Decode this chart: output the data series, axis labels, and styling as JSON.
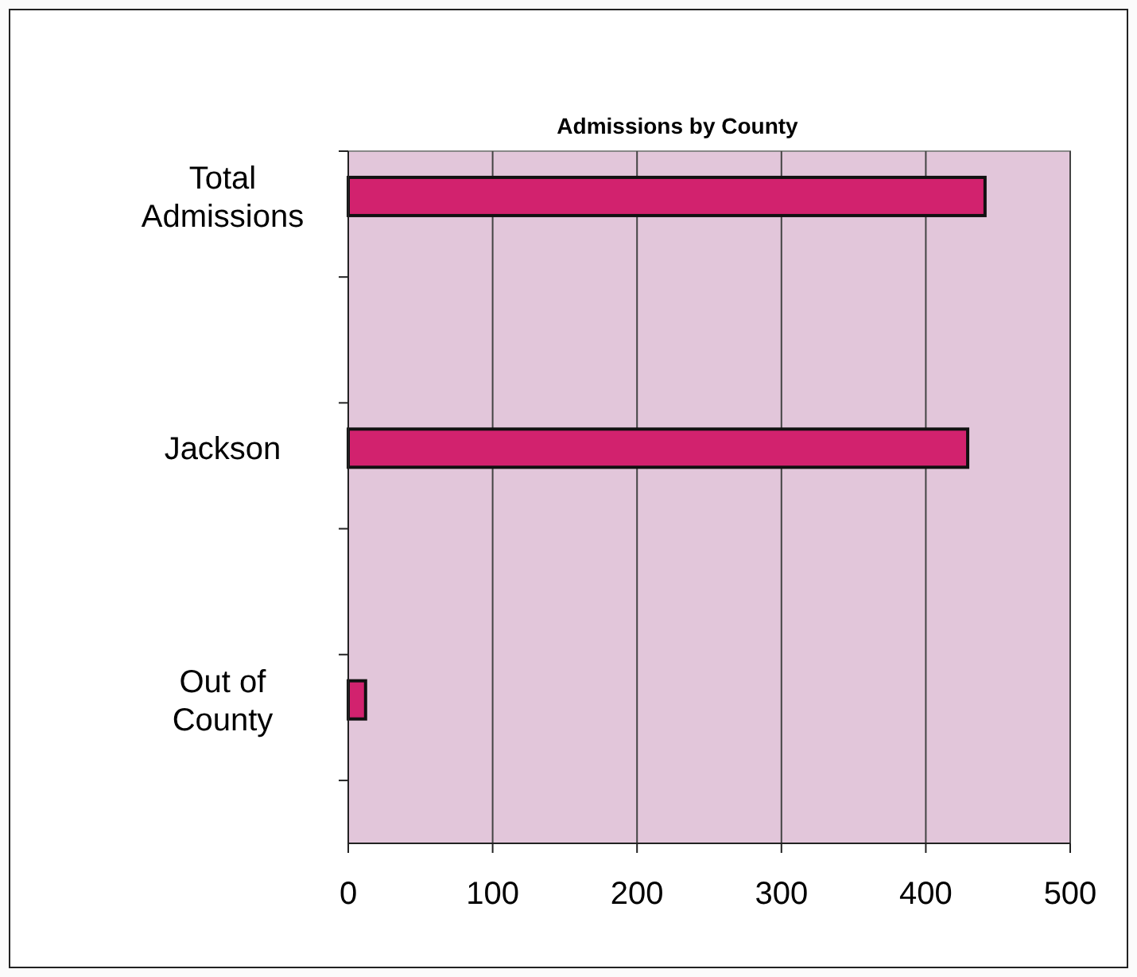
{
  "chart_data": {
    "type": "bar",
    "orientation": "horizontal",
    "title": "Admissions by County",
    "categories": [
      "Total Admissions",
      "Jackson",
      "Out of County"
    ],
    "values": [
      441,
      429,
      12
    ],
    "color": "#d2226e",
    "xlim": [
      0,
      500
    ],
    "xticks": [
      0,
      100,
      200,
      300,
      400,
      500
    ],
    "grid": "x"
  }
}
